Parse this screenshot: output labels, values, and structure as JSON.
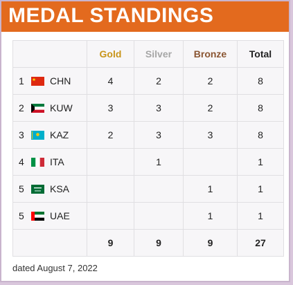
{
  "banner": {
    "title": "MEDAL STANDINGS"
  },
  "columns": {
    "gold": "Gold",
    "silver": "Silver",
    "bronze": "Bronze",
    "total": "Total"
  },
  "colors": {
    "banner": "#e36a1e",
    "gold": "#c8951a",
    "silver": "#a6a6a6",
    "bronze": "#8a5532"
  },
  "rows": [
    {
      "rank": "1",
      "team": "CHN",
      "flag": "china-flag-icon",
      "gold": "4",
      "silver": "2",
      "bronze": "2",
      "total": "8"
    },
    {
      "rank": "2",
      "team": "KUW",
      "flag": "kuwait-flag-icon",
      "gold": "3",
      "silver": "3",
      "bronze": "2",
      "total": "8"
    },
    {
      "rank": "3",
      "team": "KAZ",
      "flag": "kazakhstan-flag-icon",
      "gold": "2",
      "silver": "3",
      "bronze": "3",
      "total": "8"
    },
    {
      "rank": "4",
      "team": "ITA",
      "flag": "italy-flag-icon",
      "gold": "",
      "silver": "1",
      "bronze": "",
      "total": "1"
    },
    {
      "rank": "5",
      "team": "KSA",
      "flag": "saudi-arabia-flag-icon",
      "gold": "",
      "silver": "",
      "bronze": "1",
      "total": "1"
    },
    {
      "rank": "5",
      "team": "UAE",
      "flag": "uae-flag-icon",
      "gold": "",
      "silver": "",
      "bronze": "1",
      "total": "1"
    }
  ],
  "totals": {
    "gold": "9",
    "silver": "9",
    "bronze": "9",
    "total": "27"
  },
  "footnote": "dated August 7, 2022"
}
